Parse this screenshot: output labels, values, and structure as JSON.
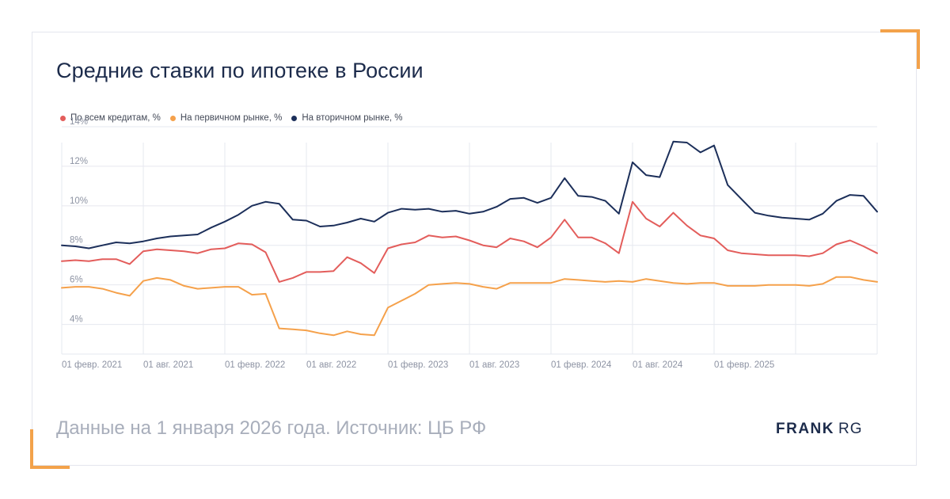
{
  "title": "Средние ставки по ипотеке в России",
  "source": "Данные на 1 января 2026 года. Источник: ЦБ РФ",
  "brand": {
    "part1": "FRANK",
    "part2": "RG"
  },
  "colors": {
    "accent": "#f3a24a",
    "all": "#e35d5b",
    "primary": "#f5a14b",
    "secondary": "#1c2f5a"
  },
  "chart_data": {
    "type": "line",
    "title": "Средние ставки по ипотеке в России",
    "xlabel": "",
    "ylabel": "",
    "ylim": [
      2.5,
      14
    ],
    "yticks": [
      4,
      6,
      8,
      10,
      12,
      14
    ],
    "ytick_labels": [
      "4%",
      "6%",
      "8%",
      "10%",
      "12%",
      "14%"
    ],
    "x": [
      "2021-02",
      "2021-03",
      "2021-04",
      "2021-05",
      "2021-06",
      "2021-07",
      "2021-08",
      "2021-09",
      "2021-10",
      "2021-11",
      "2021-12",
      "2022-01",
      "2022-02",
      "2022-03",
      "2022-04",
      "2022-05",
      "2022-06",
      "2022-07",
      "2022-08",
      "2022-09",
      "2022-10",
      "2022-11",
      "2022-12",
      "2023-01",
      "2023-02",
      "2023-03",
      "2023-04",
      "2023-05",
      "2023-06",
      "2023-07",
      "2023-08",
      "2023-09",
      "2023-10",
      "2023-11",
      "2023-12",
      "2024-01",
      "2024-02",
      "2024-03",
      "2024-04",
      "2024-05",
      "2024-06",
      "2024-07",
      "2024-08",
      "2024-09",
      "2024-10",
      "2024-11",
      "2024-12",
      "2025-01",
      "2025-02",
      "2025-03",
      "2025-04",
      "2025-05",
      "2025-06",
      "2025-07",
      "2025-08",
      "2025-09",
      "2025-10",
      "2025-11",
      "2025-12",
      "2026-01",
      "2026-02"
    ],
    "xtick_labels": [
      "01 февр. 2021",
      "01 авг. 2021",
      "01 февр. 2022",
      "01 авг. 2022",
      "01 февр. 2023",
      "01 авг. 2023",
      "01 февр. 2024",
      "01 авг. 2024",
      "01 февр. 2025"
    ],
    "xtick_index": [
      0,
      6,
      12,
      18,
      24,
      30,
      36,
      42,
      48
    ],
    "grid": true,
    "legend": "top-left",
    "series": [
      {
        "name": "По всем кредитам, %",
        "color": "#e35d5b",
        "values": [
          7.2,
          7.25,
          7.2,
          7.3,
          7.3,
          7.05,
          7.7,
          7.8,
          7.75,
          7.7,
          7.6,
          7.8,
          7.85,
          8.1,
          8.05,
          7.65,
          6.15,
          6.35,
          6.65,
          6.65,
          6.7,
          7.4,
          7.1,
          6.6,
          7.85,
          8.05,
          8.15,
          8.5,
          8.4,
          8.45,
          8.25,
          8.0,
          7.9,
          8.35,
          8.2,
          7.9,
          8.4,
          9.3,
          8.4,
          8.4,
          8.1,
          7.6,
          10.2,
          9.35,
          8.95,
          9.65,
          9.0,
          8.5,
          8.35,
          7.75,
          7.6,
          7.55,
          7.5,
          7.5,
          7.5,
          7.45,
          7.6,
          8.05,
          8.25,
          7.95,
          7.6
        ]
      },
      {
        "name": "На первичном рынке, %",
        "color": "#f5a14b",
        "values": [
          5.85,
          5.9,
          5.9,
          5.8,
          5.6,
          5.45,
          6.2,
          6.35,
          6.25,
          5.95,
          5.8,
          5.85,
          5.9,
          5.9,
          5.5,
          5.55,
          3.8,
          3.75,
          3.7,
          3.55,
          3.45,
          3.65,
          3.5,
          3.45,
          4.85,
          5.2,
          5.55,
          6.0,
          6.05,
          6.1,
          6.05,
          5.9,
          5.8,
          6.1,
          6.1,
          6.1,
          6.1,
          6.3,
          6.25,
          6.2,
          6.15,
          6.2,
          6.15,
          6.3,
          6.2,
          6.1,
          6.05,
          6.1,
          6.1,
          5.95,
          5.95,
          5.95,
          6.0,
          6.0,
          6.0,
          5.95,
          6.05,
          6.4,
          6.4,
          6.25,
          6.15
        ]
      },
      {
        "name": "На вторичном рынке, %",
        "color": "#1c2f5a",
        "values": [
          8.0,
          7.95,
          7.85,
          8.0,
          8.15,
          8.1,
          8.2,
          8.35,
          8.45,
          8.5,
          8.55,
          8.9,
          9.2,
          9.55,
          10.0,
          10.2,
          10.1,
          9.3,
          9.25,
          8.95,
          9.0,
          9.15,
          9.35,
          9.2,
          9.65,
          9.85,
          9.8,
          9.85,
          9.7,
          9.75,
          9.6,
          9.7,
          9.95,
          10.35,
          10.4,
          10.15,
          10.4,
          11.4,
          10.5,
          10.45,
          10.25,
          9.6,
          12.2,
          11.55,
          11.45,
          13.25,
          13.2,
          12.7,
          13.05,
          11.05,
          10.35,
          9.65,
          9.5,
          9.4,
          9.35,
          9.3,
          9.6,
          10.25,
          10.55,
          10.5,
          9.7
        ]
      }
    ]
  }
}
